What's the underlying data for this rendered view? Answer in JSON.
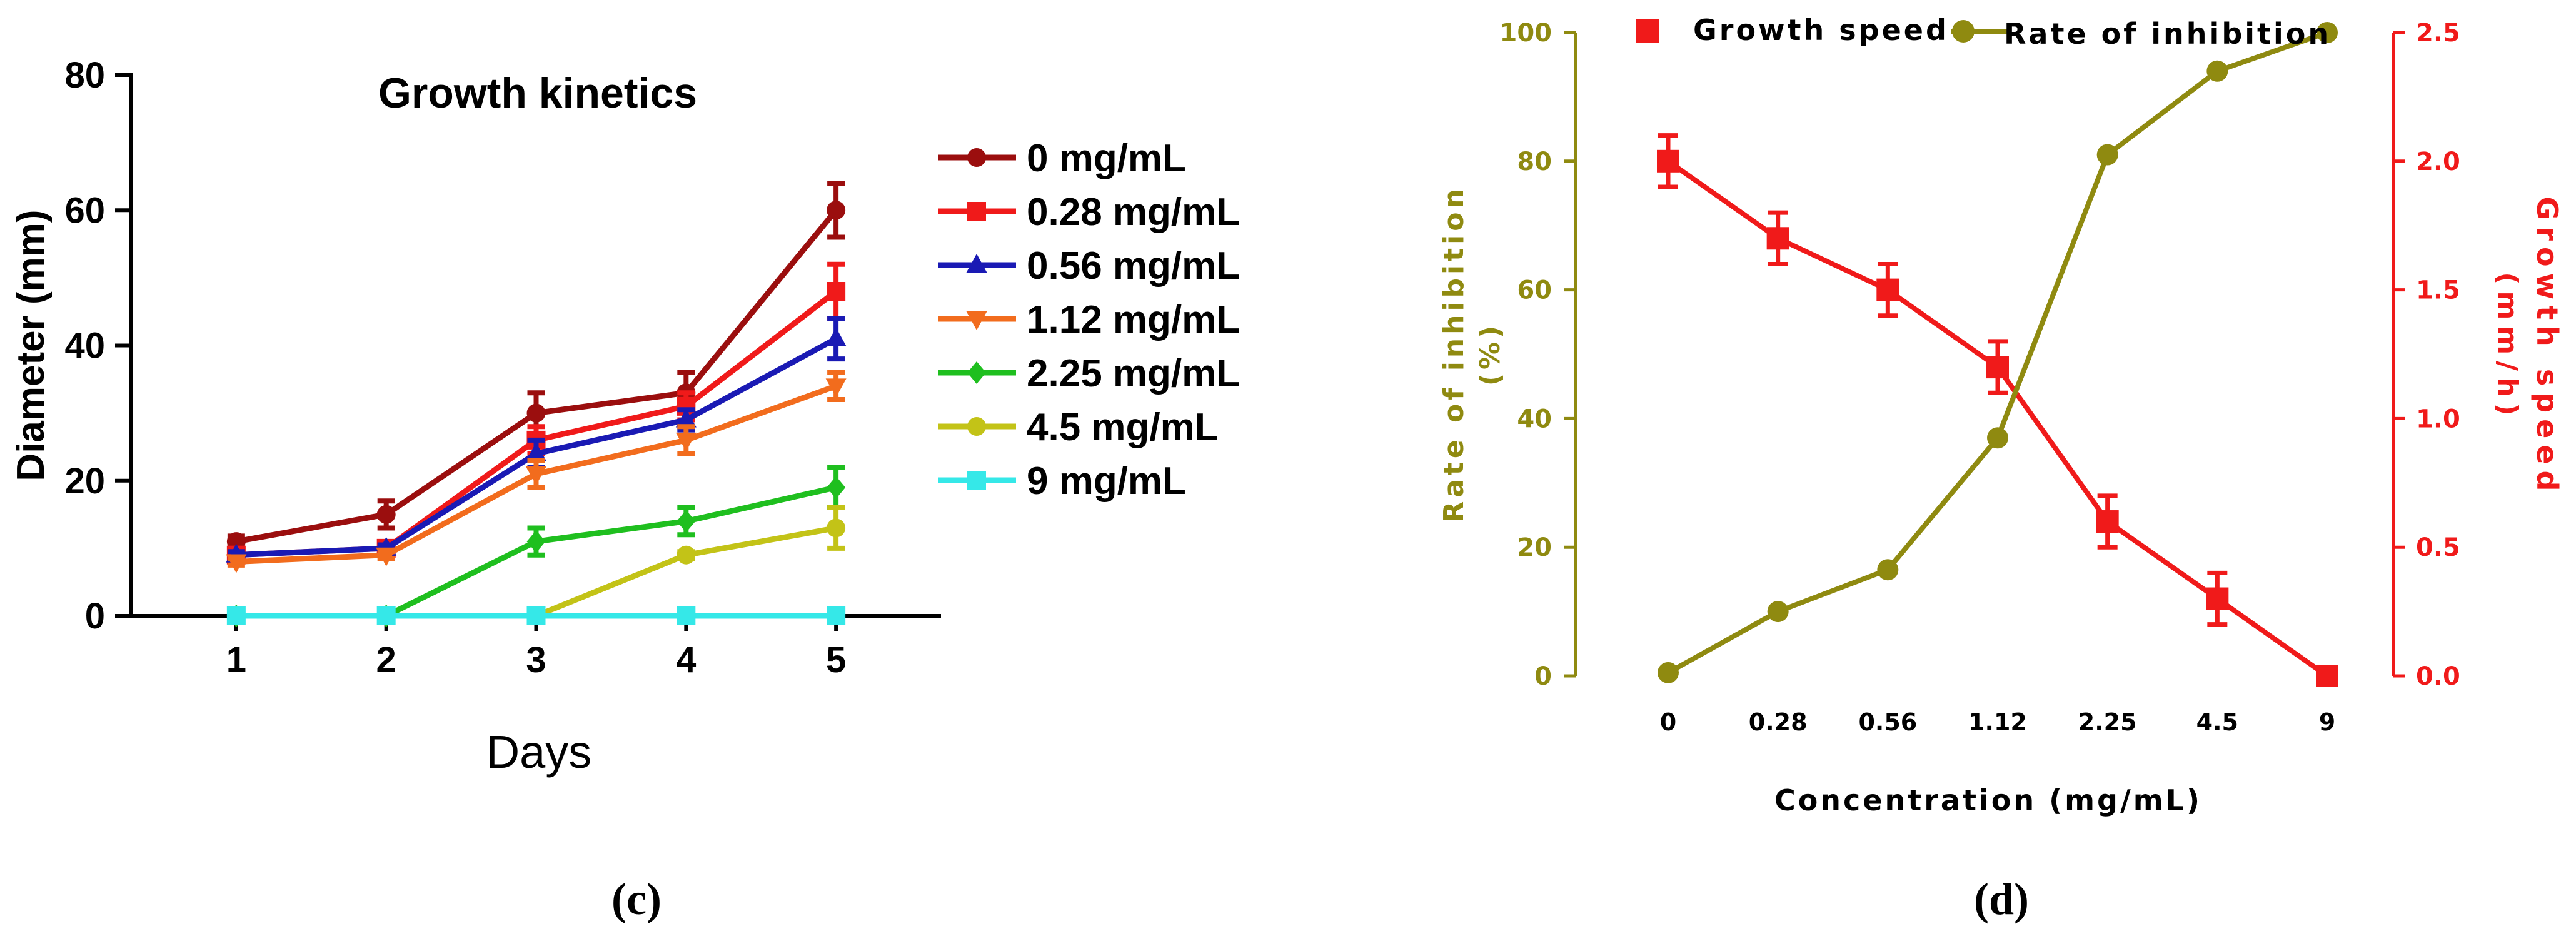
{
  "chart_data": [
    {
      "type": "line",
      "panel": "(c)",
      "title": "Growth kinetics",
      "xlabel": "Days",
      "ylabel": "Diameter (mm)",
      "x": [
        1,
        2,
        3,
        4,
        5
      ],
      "xlim": [
        0.3,
        5.7
      ],
      "ylim": [
        0,
        80
      ],
      "yticks": [
        0,
        20,
        40,
        60,
        80
      ],
      "grid": false,
      "legend_position": "right",
      "series": [
        {
          "name": "0 mg/mL",
          "color": "#9b0e0e",
          "marker": "circle",
          "values": [
            11,
            15,
            30,
            33,
            60
          ],
          "errors": [
            0.8,
            2,
            3,
            3,
            4
          ]
        },
        {
          "name": "0.28 mg/mL",
          "color": "#f01a1a",
          "marker": "square",
          "values": [
            9,
            10,
            26,
            31,
            48
          ],
          "errors": [
            0.8,
            1,
            2,
            2,
            4
          ]
        },
        {
          "name": "0.56 mg/mL",
          "color": "#1a1ab4",
          "marker": "triangle-up",
          "values": [
            9,
            10,
            24,
            29,
            41
          ],
          "errors": [
            0.5,
            0.5,
            2,
            1.5,
            3
          ]
        },
        {
          "name": "1.12 mg/mL",
          "color": "#f26c1d",
          "marker": "triangle-down",
          "values": [
            8,
            9,
            21,
            26,
            34
          ],
          "errors": [
            0.5,
            0.5,
            2,
            2,
            2
          ]
        },
        {
          "name": "2.25 mg/mL",
          "color": "#1fbf1f",
          "marker": "diamond",
          "values": [
            0,
            0,
            11,
            14,
            19
          ],
          "errors": [
            0,
            0,
            2,
            2,
            3
          ]
        },
        {
          "name": "4.5 mg/mL",
          "color": "#c3c317",
          "marker": "circle",
          "values": [
            0,
            0,
            0,
            9,
            13
          ],
          "errors": [
            0,
            0,
            0,
            0.5,
            3
          ]
        },
        {
          "name": "9 mg/mL",
          "color": "#35e8e8",
          "marker": "square",
          "values": [
            0,
            0,
            0,
            0,
            0
          ],
          "errors": [
            0,
            0,
            0,
            0,
            0
          ]
        }
      ]
    },
    {
      "type": "line",
      "panel": "(d)",
      "title": "",
      "xlabel": "Concentration (mg/mL)",
      "categories": [
        "0",
        "0.28",
        "0.56",
        "1.12",
        "2.25",
        "4.5",
        "9"
      ],
      "left_axis": {
        "label_line1": "Rate of inhibition",
        "label_line2": "(%)",
        "ylim": [
          0,
          100
        ],
        "yticks": [
          "0",
          "20",
          "40",
          "60",
          "80",
          "100"
        ],
        "color": "#8f8a10"
      },
      "right_axis": {
        "label_line1": "Growth speed",
        "label_line2": "(mm/h)",
        "ylim": [
          0,
          2.5
        ],
        "yticks": [
          "0.0",
          "0.5",
          "1.0",
          "1.5",
          "2.0",
          "2.5"
        ],
        "color": "#f01a1a"
      },
      "legend_position": "top",
      "series": [
        {
          "name": "Growth speed",
          "axis": "right",
          "color": "#f01a1a",
          "marker": "square",
          "values": [
            2.0,
            1.7,
            1.5,
            1.2,
            0.6,
            0.3,
            0.0
          ],
          "errors": [
            0.1,
            0.1,
            0.1,
            0.1,
            0.1,
            0.1,
            0.0
          ]
        },
        {
          "name": "Rate of inhibition",
          "axis": "left",
          "color": "#8f8a10",
          "marker": "circle",
          "values": [
            0.5,
            10,
            16.5,
            37,
            81,
            94,
            100
          ],
          "errors": [
            0,
            0,
            0,
            0,
            0,
            0,
            0
          ]
        }
      ]
    }
  ]
}
